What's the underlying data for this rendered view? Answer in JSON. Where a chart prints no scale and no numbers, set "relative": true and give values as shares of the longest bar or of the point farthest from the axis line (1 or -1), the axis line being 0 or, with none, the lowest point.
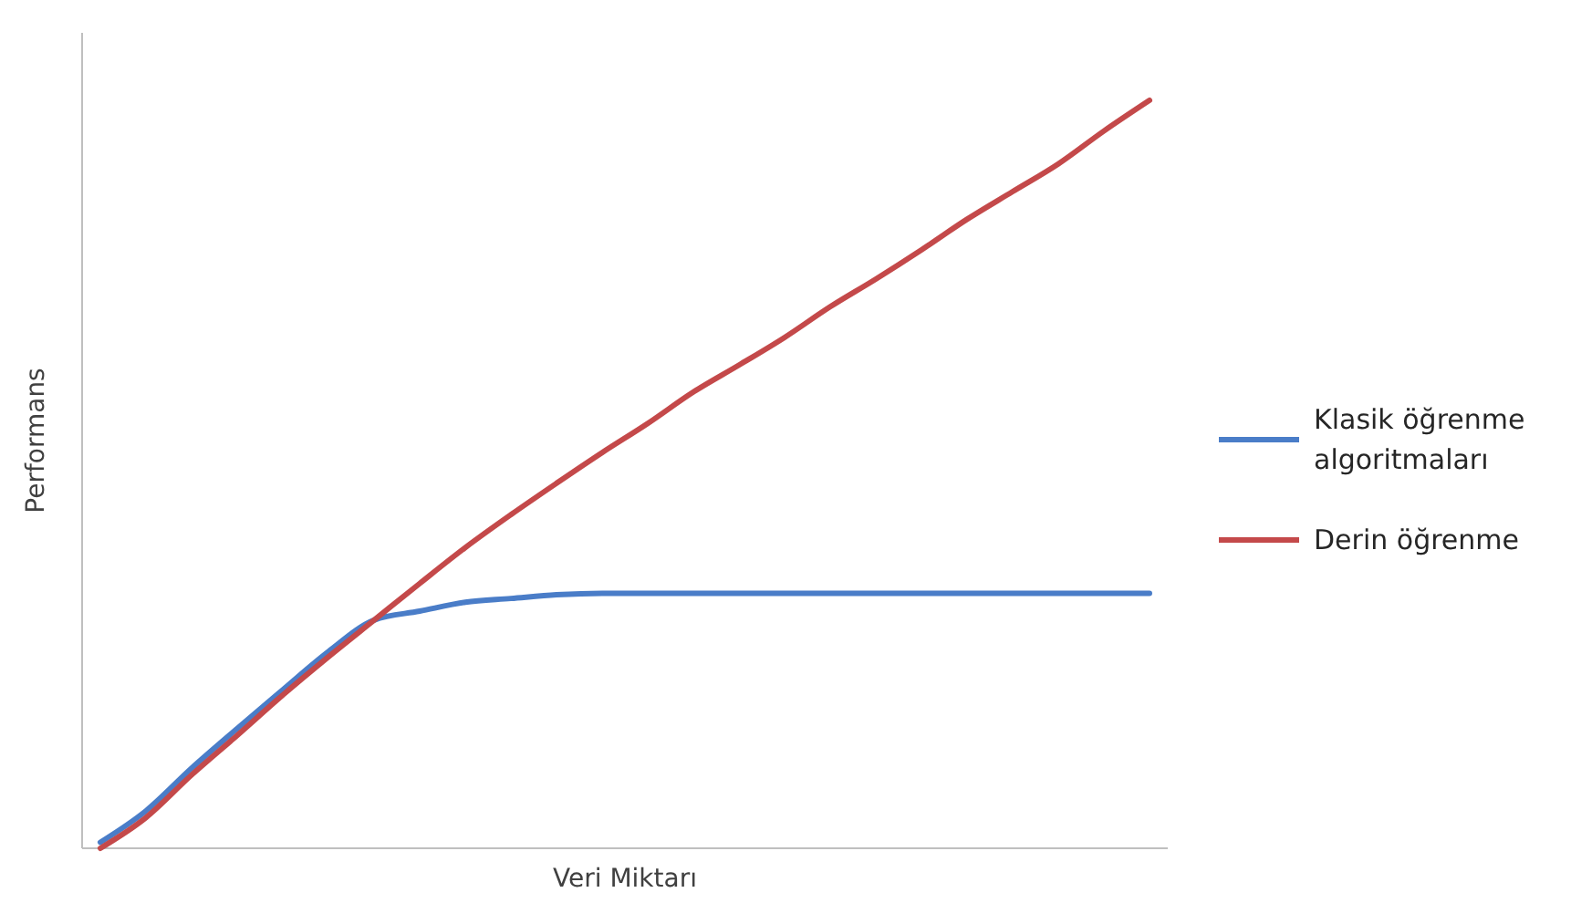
{
  "chart_data": {
    "type": "line",
    "relative": true,
    "xlabel": "Veri Miktarı",
    "ylabel": "Performans",
    "legend": "right",
    "categories": [
      null,
      null,
      null,
      null,
      null,
      null,
      null,
      null,
      null,
      null,
      null,
      null,
      null,
      null,
      null,
      null,
      null,
      null,
      null,
      null,
      null,
      null,
      null,
      null
    ],
    "series": [
      {
        "name": "Klasik öğrenme algoritmaları",
        "color": "#4a7dc8",
        "values": [
          0.008,
          0.05,
          0.107,
          0.16,
          0.212,
          0.263,
          0.305,
          0.317,
          0.329,
          0.334,
          0.339,
          0.341,
          0.341,
          0.341,
          0.341,
          0.341,
          0.341,
          0.341,
          0.341,
          0.341,
          0.341,
          0.341,
          0.341,
          0.341
        ]
      },
      {
        "name": "Derin öğrenme",
        "color": "#c4494a",
        "values": [
          0,
          0.041,
          0.098,
          0.151,
          0.205,
          0.256,
          0.305,
          0.354,
          0.402,
          0.446,
          0.488,
          0.529,
          0.568,
          0.61,
          0.646,
          0.683,
          0.724,
          0.761,
          0.8,
          0.841,
          0.878,
          0.915,
          0.959,
          1
        ]
      }
    ]
  }
}
